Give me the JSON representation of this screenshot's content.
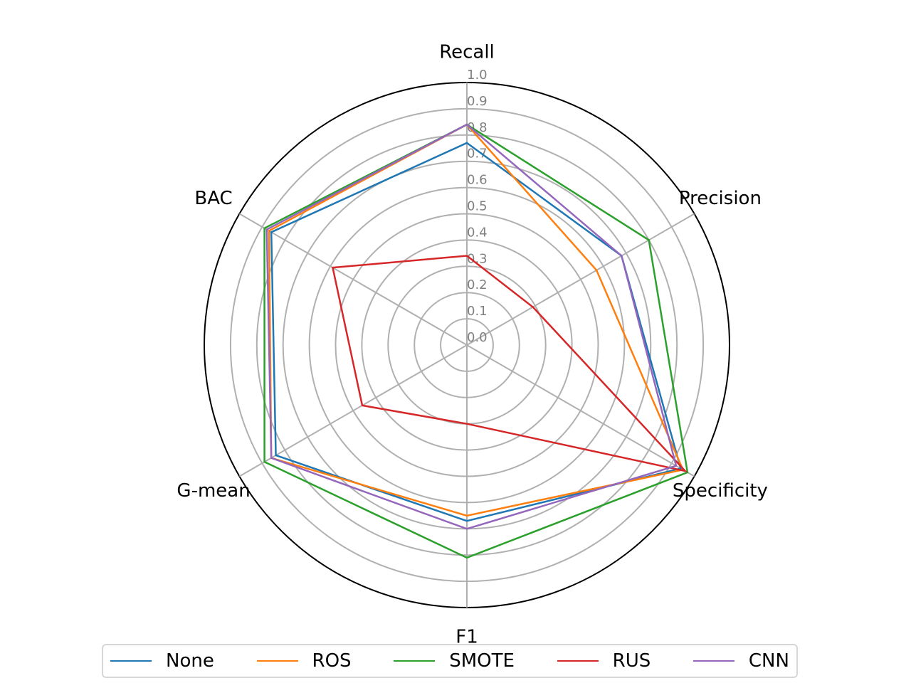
{
  "chart_data": {
    "type": "radar",
    "axes": [
      "Recall",
      "Precision",
      "Specificity",
      "F1",
      "G-mean",
      "BAC"
    ],
    "radial_ticks": [
      "0.0",
      "0.1",
      "0.2",
      "0.3",
      "0.4",
      "0.5",
      "0.6",
      "0.7",
      "0.8",
      "0.9",
      "1.0"
    ],
    "rlim": [
      0,
      1.0
    ],
    "grid": true,
    "legend_position": "bottom",
    "series": [
      {
        "name": "None",
        "color": "#1f77b4",
        "values": [
          0.77,
          0.68,
          0.94,
          0.67,
          0.84,
          0.86
        ]
      },
      {
        "name": "ROS",
        "color": "#ff7f0e",
        "values": [
          0.84,
          0.57,
          0.95,
          0.65,
          0.86,
          0.87
        ]
      },
      {
        "name": "SMOTE",
        "color": "#2ca02c",
        "values": [
          0.84,
          0.8,
          0.97,
          0.81,
          0.89,
          0.89
        ]
      },
      {
        "name": "RUS",
        "color": "#d62728",
        "values": [
          0.34,
          0.29,
          0.96,
          0.3,
          0.46,
          0.59
        ]
      },
      {
        "name": "CNN",
        "color": "#9467bd",
        "values": [
          0.84,
          0.68,
          0.92,
          0.7,
          0.86,
          0.88
        ]
      }
    ]
  }
}
